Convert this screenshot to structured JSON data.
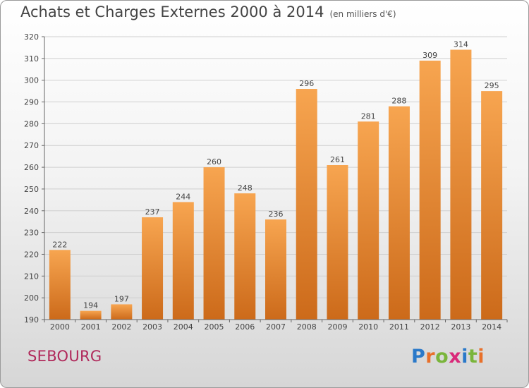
{
  "title": "Achats et Charges Externes 2000 à 2014",
  "subtitle": "(en milliers d'€)",
  "location": "SEBOURG",
  "logo": {
    "text": "Proxiti",
    "letter_colors": [
      "#2a79c9",
      "#e8702a",
      "#7ab53b",
      "#d92a7a",
      "#2a79c9",
      "#7ab53b",
      "#e8702a"
    ]
  },
  "colors": {
    "bar_top": "#f7a550",
    "bar_bottom": "#cc6a1a",
    "axis": "#666666",
    "grid": "#cfcfcf",
    "text": "#444444"
  },
  "chart_data": {
    "type": "bar",
    "categories": [
      "2000",
      "2001",
      "2002",
      "2003",
      "2004",
      "2005",
      "2006",
      "2007",
      "2008",
      "2009",
      "2010",
      "2011",
      "2012",
      "2013",
      "2014"
    ],
    "values": [
      222,
      194,
      197,
      237,
      244,
      260,
      248,
      236,
      296,
      261,
      281,
      288,
      309,
      314,
      295
    ],
    "ylim": [
      190,
      320
    ],
    "yticks": [
      190,
      200,
      210,
      220,
      230,
      240,
      250,
      260,
      270,
      280,
      290,
      300,
      310,
      320
    ],
    "grid": true,
    "xlabel": "",
    "ylabel": ""
  }
}
